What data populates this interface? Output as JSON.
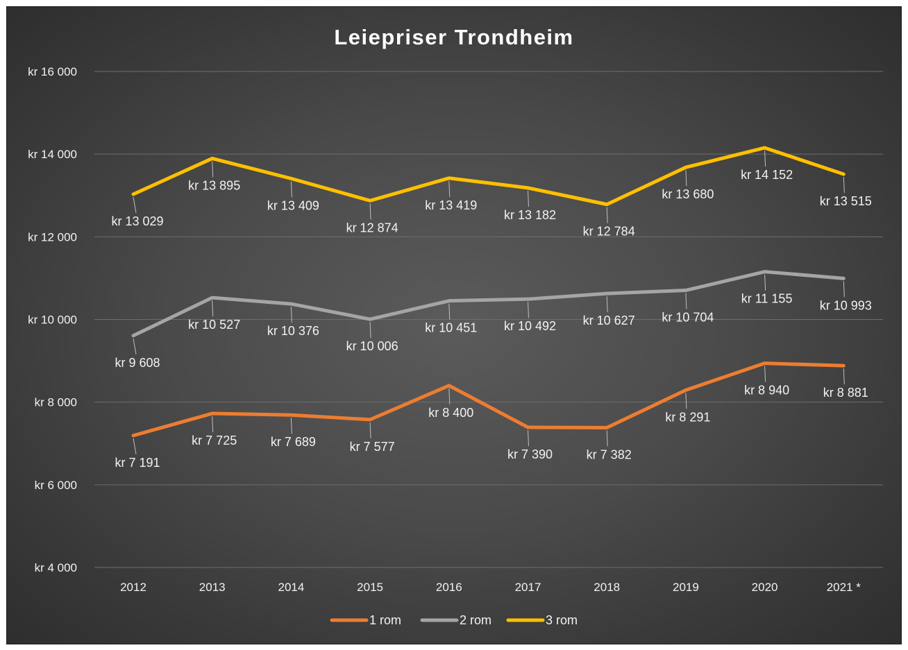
{
  "chart_data": {
    "type": "line",
    "title": "Leiepriser Trondheim",
    "categories": [
      "2012",
      "2013",
      "2014",
      "2015",
      "2016",
      "2017",
      "2018",
      "2019",
      "2020",
      "2021 *"
    ],
    "ylim": [
      4000,
      16000
    ],
    "yticks": [
      4000,
      6000,
      8000,
      10000,
      12000,
      14000,
      16000
    ],
    "ytick_labels": [
      "kr 4 000",
      "kr 6 000",
      "kr 8 000",
      "kr 10 000",
      "kr 12 000",
      "kr 14 000",
      "kr 16 000"
    ],
    "grid": true,
    "legend_position": "bottom",
    "series": [
      {
        "name": "1 rom",
        "color": "#ed7d31",
        "values": [
          7191,
          7725,
          7689,
          7577,
          8400,
          7390,
          7382,
          8291,
          8940,
          8881
        ],
        "labels": [
          "kr 7 191",
          "kr 7 725",
          "kr 7 689",
          "kr 7 577",
          "kr 8 400",
          "kr 7 390",
          "kr 7 382",
          "kr 8 291",
          "kr 8 940",
          "kr 8 881"
        ]
      },
      {
        "name": "2 rom",
        "color": "#a5a5a5",
        "values": [
          9608,
          10527,
          10376,
          10006,
          10451,
          10492,
          10627,
          10704,
          11155,
          10993
        ],
        "labels": [
          "kr 9 608",
          "kr 10 527",
          "kr 10 376",
          "kr 10 006",
          "kr 10 451",
          "kr 10 492",
          "kr 10 627",
          "kr 10 704",
          "kr 11 155",
          "kr 10 993"
        ]
      },
      {
        "name": "3 rom",
        "color": "#ffc000",
        "values": [
          13029,
          13895,
          13409,
          12874,
          13419,
          13182,
          12784,
          13680,
          14152,
          13515
        ],
        "labels": [
          "kr 13 029",
          "kr 13 895",
          "kr 13 409",
          "kr 12 874",
          "kr 13 419",
          "kr 13 182",
          "kr 12 784",
          "kr 13 680",
          "kr 14 152",
          "kr 13 515"
        ]
      }
    ]
  }
}
